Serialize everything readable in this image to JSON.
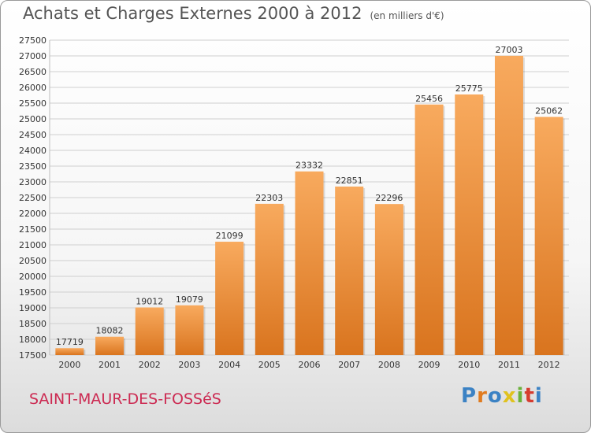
{
  "title": "Achats et Charges Externes 2000 à 2012",
  "subtitle": "(en milliers d'€)",
  "commune": "SAINT-MAUR-DES-FOSSéS",
  "logo": {
    "text": "Proxiti",
    "letters": [
      {
        "ch": "P",
        "color": "#3b82c4"
      },
      {
        "ch": "r",
        "color": "#e07b1f"
      },
      {
        "ch": "o",
        "color": "#3b82c4"
      },
      {
        "ch": "x",
        "color": "#e0c21f"
      },
      {
        "ch": "i",
        "color": "#6ab13a"
      },
      {
        "ch": "t",
        "color": "#d63c2f"
      },
      {
        "ch": "i",
        "color": "#3b82c4"
      }
    ]
  },
  "colors": {
    "bar_light": "#f8aa5e",
    "bar_dark": "#d9741e",
    "grid": "#cfcfcf"
  },
  "chart_data": {
    "type": "bar",
    "categories": [
      "2000",
      "2001",
      "2002",
      "2003",
      "2004",
      "2005",
      "2006",
      "2007",
      "2008",
      "2009",
      "2010",
      "2011",
      "2012"
    ],
    "values": [
      17719,
      18082,
      19012,
      19079,
      21099,
      22303,
      23332,
      22851,
      22296,
      25456,
      25775,
      27003,
      25062
    ],
    "ylim": [
      17500,
      27500
    ],
    "ytick_step": 500,
    "grid": true
  }
}
